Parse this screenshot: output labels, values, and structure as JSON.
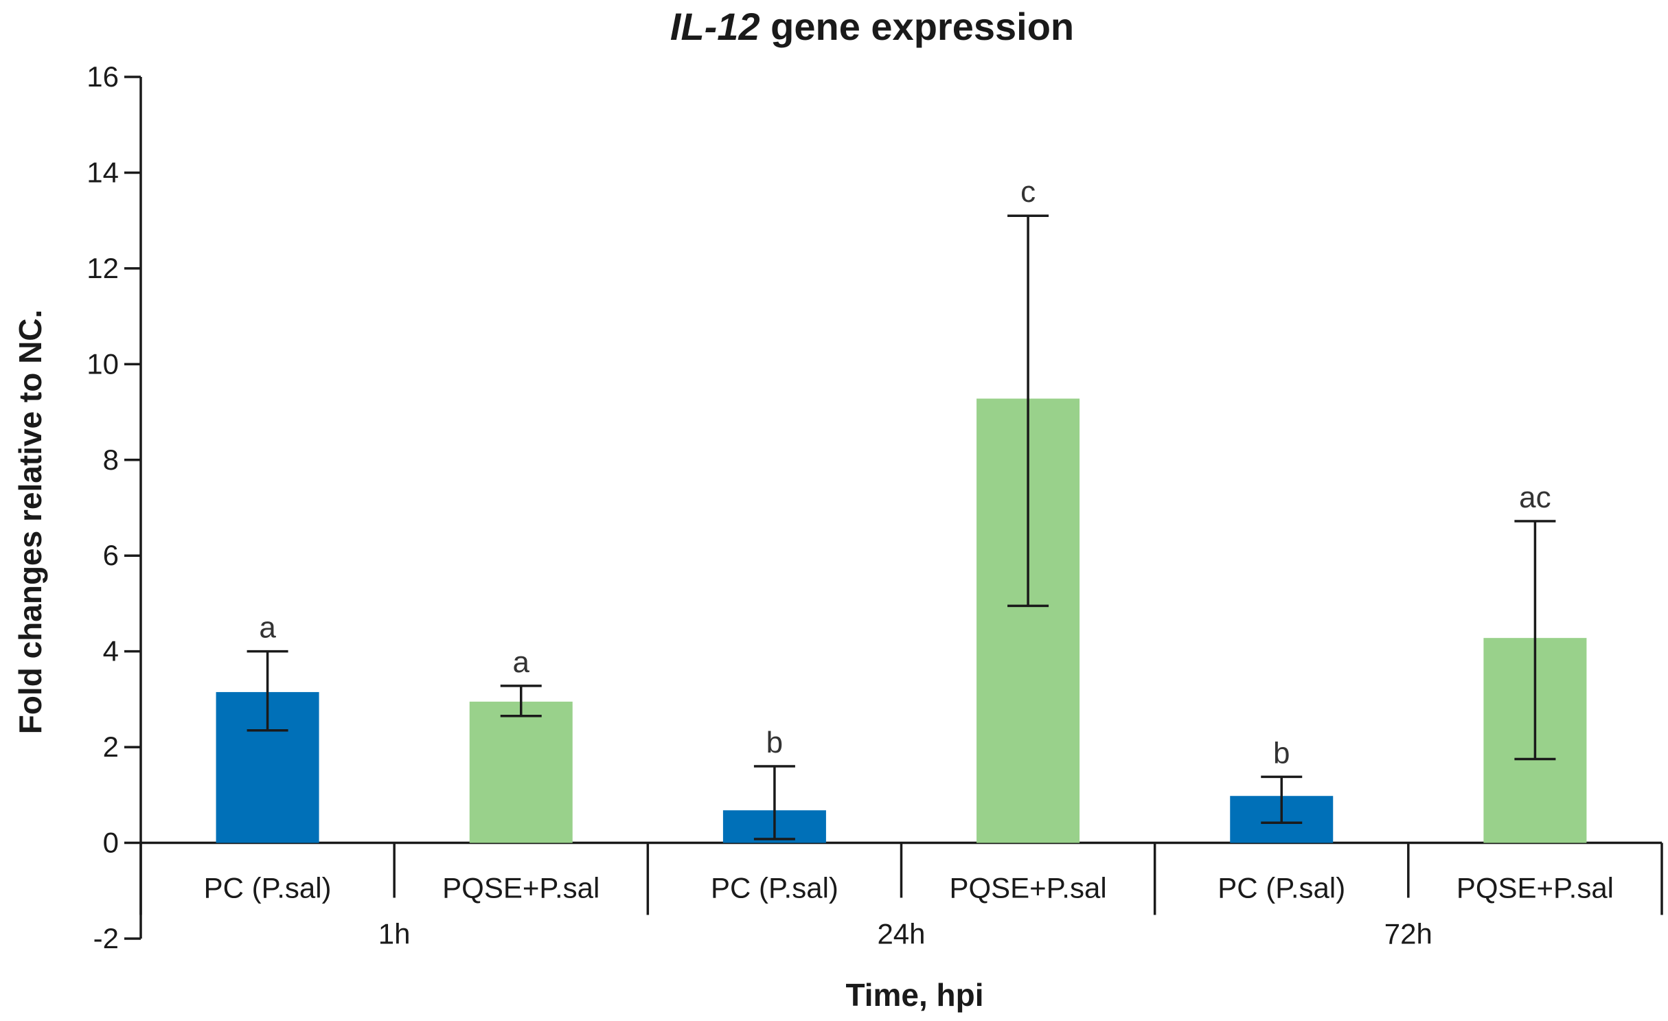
{
  "chart_data": {
    "type": "bar",
    "title_italic": "IL-12",
    "title_rest": " gene expression",
    "ylabel": "Fold changes relative to NC.",
    "xlabel": "Time, hpi",
    "ylim": [
      -2,
      16
    ],
    "yticks": [
      -2,
      0,
      2,
      4,
      6,
      8,
      10,
      12,
      14,
      16
    ],
    "groups": [
      "1h",
      "24h",
      "72h"
    ],
    "bar_labels": [
      "PC (P.sal)",
      "PQSE+P.sal"
    ],
    "series_colors": [
      "#0070b8",
      "#99d18b"
    ],
    "bars": [
      {
        "group": "1h",
        "label": "PC (P.sal)",
        "series": 0,
        "value": 3.15,
        "err_low": 2.35,
        "err_high": 4.0,
        "letter": "a"
      },
      {
        "group": "1h",
        "label": "PQSE+P.sal",
        "series": 1,
        "value": 2.95,
        "err_low": 2.65,
        "err_high": 3.28,
        "letter": "a"
      },
      {
        "group": "24h",
        "label": "PC (P.sal)",
        "series": 0,
        "value": 0.68,
        "err_low": 0.08,
        "err_high": 1.6,
        "letter": "b"
      },
      {
        "group": "24h",
        "label": "PQSE+P.sal",
        "series": 1,
        "value": 9.28,
        "err_low": 4.95,
        "err_high": 13.1,
        "letter": "c"
      },
      {
        "group": "72h",
        "label": "PC (P.sal)",
        "series": 0,
        "value": 0.98,
        "err_low": 0.42,
        "err_high": 1.38,
        "letter": "b"
      },
      {
        "group": "72h",
        "label": "PQSE+P.sal",
        "series": 1,
        "value": 4.28,
        "err_low": 1.75,
        "err_high": 6.72,
        "letter": "ac"
      }
    ]
  }
}
